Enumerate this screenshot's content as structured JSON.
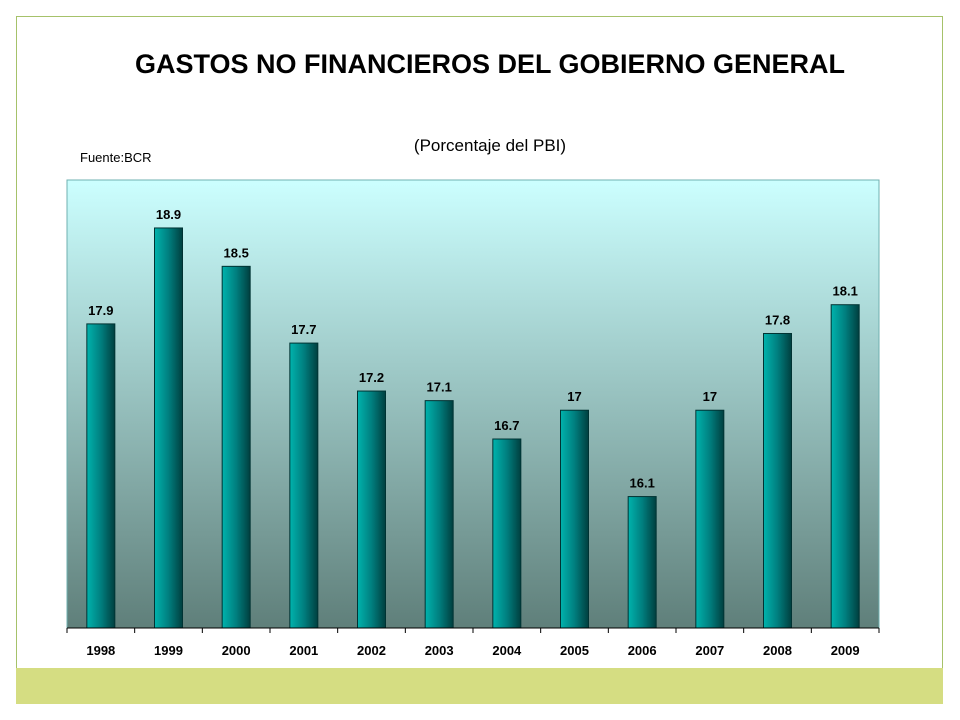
{
  "title": "GASTOS NO FINANCIEROS DEL GOBIERNO GENERAL",
  "subtitle": "(Porcentaje del PBI)",
  "source": "Fuente:BCR",
  "colors": {
    "bar": "#007f7f",
    "plot_top": "#ccffff",
    "plot_bottom": "#5f7f7a",
    "footer_band": "#d5dd82",
    "frame_border": "#a6c26a"
  },
  "chart_data": {
    "type": "bar",
    "categories": [
      "1998",
      "1999",
      "2000",
      "2001",
      "2002",
      "2003",
      "2004",
      "2005",
      "2006",
      "2007",
      "2008",
      "2009"
    ],
    "values": [
      17.9,
      18.9,
      18.5,
      17.7,
      17.2,
      17.1,
      16.7,
      17,
      16.1,
      17,
      17.8,
      18.1
    ],
    "data_labels": [
      "17.9",
      "18.9",
      "18.5",
      "17.7",
      "17.2",
      "17.1",
      "16.7",
      "17",
      "16.1",
      "17",
      "17.8",
      "18.1"
    ],
    "title": "GASTOS NO FINANCIEROS DEL GOBIERNO GENERAL",
    "subtitle": "(Porcentaje del PBI)",
    "xlabel": "",
    "ylabel": "",
    "ylim": [
      14.73,
      19.4
    ],
    "grid": false,
    "legend": "none"
  }
}
